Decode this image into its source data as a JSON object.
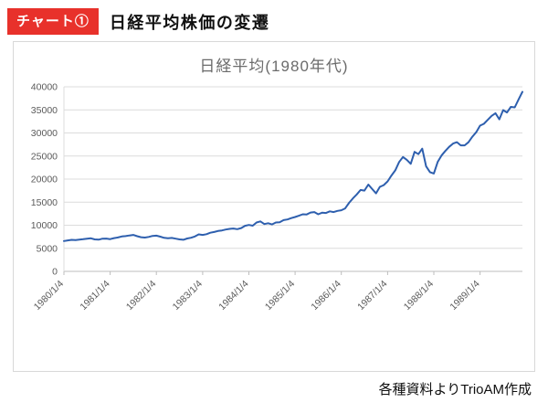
{
  "header": {
    "badge": "チャート①",
    "title": "日経平均株価の変遷"
  },
  "chart_data": {
    "type": "line",
    "title": "日経平均(1980年代)",
    "series_name": "日経平均株価",
    "line_color": "#2e5fae",
    "grid": "horizontal",
    "legend": "none",
    "ylim": [
      0,
      40000
    ],
    "ytick": 5000,
    "x_unit": "monthly, 1980/1 - 1989/12",
    "x_ticks": [
      "1980/1/4",
      "1981/1/4",
      "1982/1/4",
      "1983/1/4",
      "1984/1/4",
      "1985/1/4",
      "1986/1/4",
      "1987/1/4",
      "1988/1/4",
      "1989/1/4"
    ],
    "values": [
      6570,
      6720,
      6840,
      6780,
      6870,
      6980,
      7090,
      7160,
      6940,
      6870,
      7090,
      7110,
      6990,
      7210,
      7340,
      7560,
      7640,
      7780,
      7910,
      7620,
      7400,
      7320,
      7460,
      7680,
      7740,
      7530,
      7260,
      7180,
      7240,
      7080,
      6930,
      6860,
      7120,
      7280,
      7570,
      8020,
      7900,
      8060,
      8380,
      8530,
      8750,
      8880,
      9070,
      9210,
      9280,
      9150,
      9390,
      9890,
      10060,
      9910,
      10590,
      10840,
      10250,
      10440,
      10170,
      10600,
      10650,
      11100,
      11250,
      11540,
      11790,
      12050,
      12380,
      12330,
      12750,
      12860,
      12370,
      12710,
      12650,
      13000,
      12860,
      13110,
      13240,
      13640,
      14860,
      15830,
      16670,
      17650,
      17510,
      18820,
      17850,
      16910,
      18320,
      18700,
      19500,
      20770,
      21910,
      23700,
      24800,
      24180,
      23300,
      25900,
      25400,
      26600,
      22800,
      21500,
      21200,
      23700,
      25100,
      26100,
      27000,
      27700,
      28000,
      27300,
      27300,
      27980,
      29180,
      30160,
      31580,
      31990,
      32840,
      33710,
      34270,
      32950,
      34950,
      34430,
      35640,
      35550,
      37270,
      38920
    ]
  },
  "footer": {
    "credit": "各種資料よりTrioAM作成"
  }
}
